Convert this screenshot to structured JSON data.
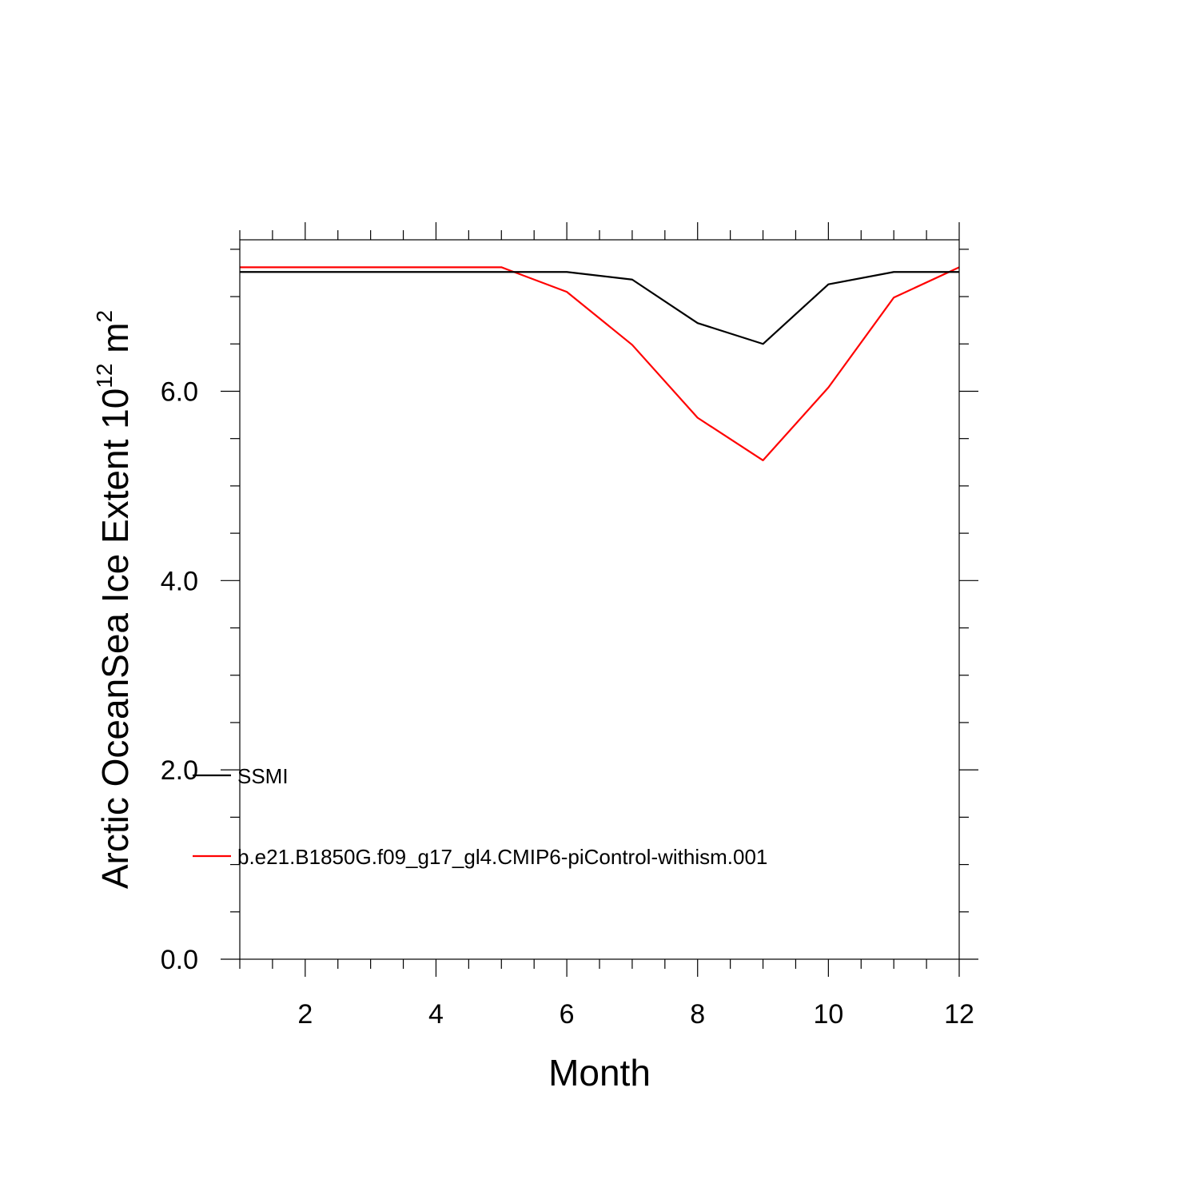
{
  "chart_data": {
    "type": "line",
    "xlabel": "Month",
    "ylabel_main": "Arctic OceanSea Ice Extent 10",
    "ylabel_exp": "12",
    "ylabel_unit": " m",
    "ylabel_unit_exp": "2",
    "xlim": [
      1,
      12
    ],
    "ylim": [
      0,
      7.6
    ],
    "x_major_ticks": [
      2,
      4,
      6,
      8,
      10,
      12
    ],
    "x_tick_labels": [
      "2",
      "4",
      "6",
      "8",
      "10",
      "12"
    ],
    "y_major_ticks": [
      0,
      2,
      4,
      6
    ],
    "y_tick_labels": [
      "0.0",
      "2.0",
      "4.0",
      "6.0"
    ],
    "x": [
      1,
      2,
      3,
      4,
      5,
      6,
      7,
      8,
      9,
      10,
      11,
      12
    ],
    "series": [
      {
        "name": "SSMI",
        "color": "#000000",
        "values": [
          7.26,
          7.26,
          7.26,
          7.26,
          7.26,
          7.26,
          7.18,
          6.72,
          6.5,
          7.13,
          7.26,
          7.26
        ]
      },
      {
        "name": "b.e21.B1850G.f09_g17_gl4.CMIP6-piControl-withism.001",
        "color": "#ff0000",
        "values": [
          7.31,
          7.31,
          7.31,
          7.31,
          7.31,
          7.05,
          6.49,
          5.72,
          5.27,
          6.04,
          6.99,
          7.31
        ]
      }
    ],
    "grid": false,
    "legend_placement": "lower-left"
  }
}
